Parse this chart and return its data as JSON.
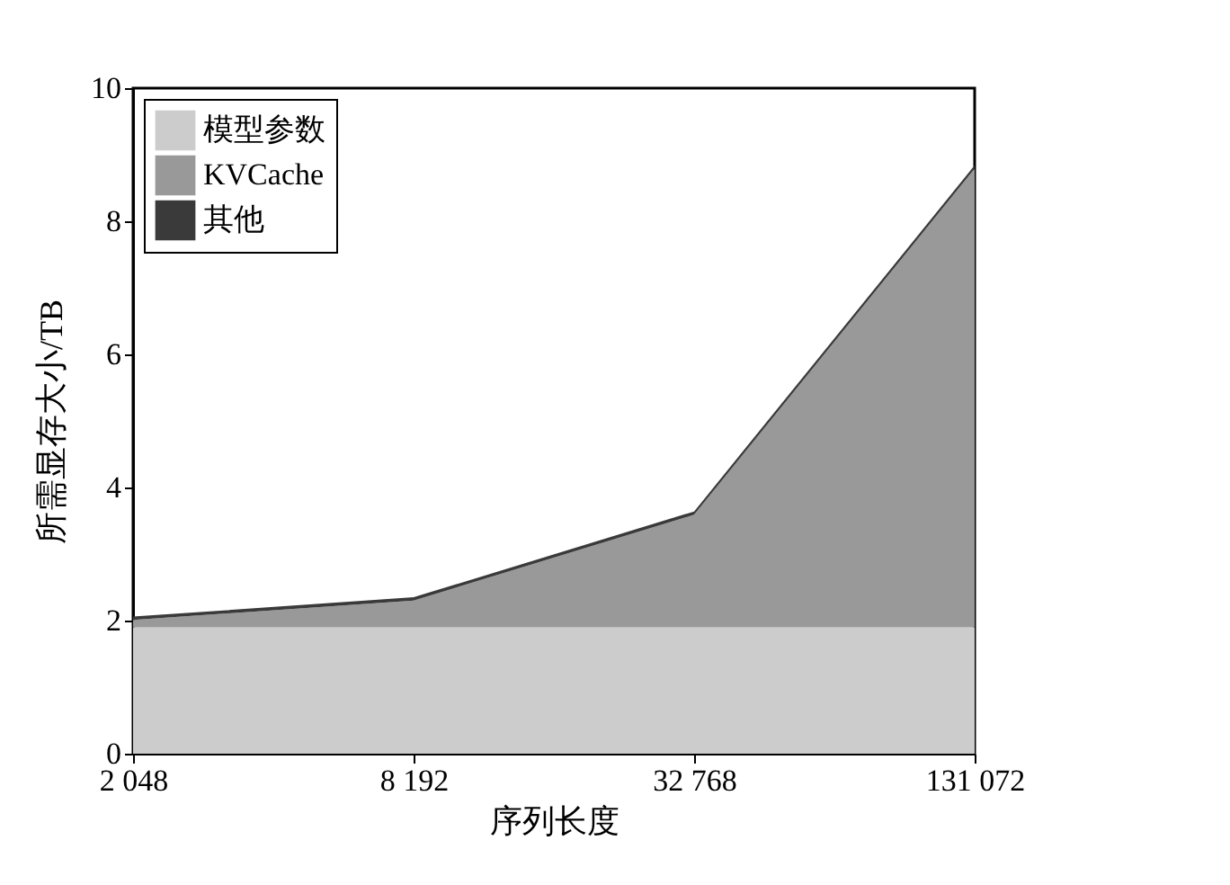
{
  "chart_data": {
    "type": "area",
    "stacked": true,
    "xlabel": "序列长度",
    "ylabel": "所需显存大小/TB",
    "categories": [
      "2 048",
      "8 192",
      "32 768",
      "131 072"
    ],
    "series": [
      {
        "name": "模型参数",
        "color": "#cccccc",
        "values": [
          1.9,
          1.9,
          1.9,
          1.9
        ]
      },
      {
        "name": "KVCache",
        "color": "#999999",
        "values": [
          0.11,
          0.4,
          1.69,
          6.89
        ]
      },
      {
        "name": "其他",
        "color": "#3a3a3a",
        "values": [
          0.05,
          0.05,
          0.05,
          0.05
        ]
      }
    ],
    "ylim": [
      0,
      10
    ],
    "yticks": [
      0,
      2,
      4,
      6,
      8,
      10
    ],
    "grid": false,
    "legend": "top left"
  }
}
